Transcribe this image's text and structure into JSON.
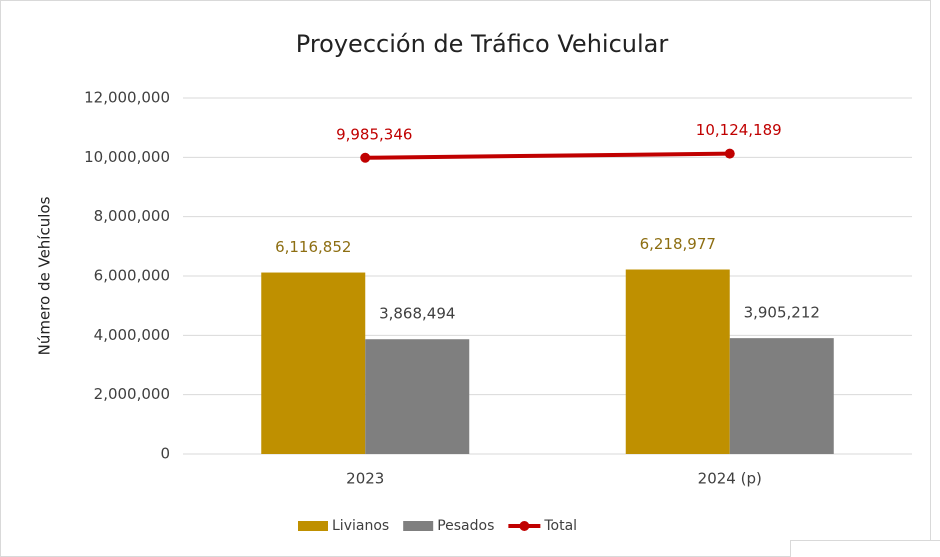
{
  "chart_data": {
    "type": "bar",
    "title": "Proyección de Tráfico Vehicular",
    "y_label": "Número de Vehículos",
    "categories": [
      "2023",
      "2024 (p)"
    ],
    "series": [
      {
        "name": "Livianos",
        "type": "bar",
        "color": "#bf9000",
        "values": [
          6116852,
          6218977
        ],
        "value_labels": [
          "6,116,852",
          "6,218,977"
        ]
      },
      {
        "name": "Pesados",
        "type": "bar",
        "color": "#7f7f7f",
        "values": [
          3868494,
          3905212
        ],
        "value_labels": [
          "3,868,494",
          "3,905,212"
        ]
      },
      {
        "name": "Total",
        "type": "line",
        "color": "#c00000",
        "values": [
          9985346,
          10124189
        ],
        "value_labels": [
          "9,985,346",
          "10,124,189"
        ]
      }
    ],
    "ylim": [
      0,
      12000000
    ],
    "yticks": [
      0,
      {
        "value": 2000000,
        "label": "2,000,000"
      },
      {
        "value": 4000000,
        "label": "4,000,000"
      },
      {
        "value": 6000000,
        "label": "6,000,000"
      },
      {
        "value": 8000000,
        "label": "8,000,000"
      },
      {
        "value": 10000000,
        "label": "10,000,000"
      },
      {
        "value": 12000000,
        "label": "12,000,000"
      }
    ],
    "grid": true,
    "legend": "bottom"
  }
}
